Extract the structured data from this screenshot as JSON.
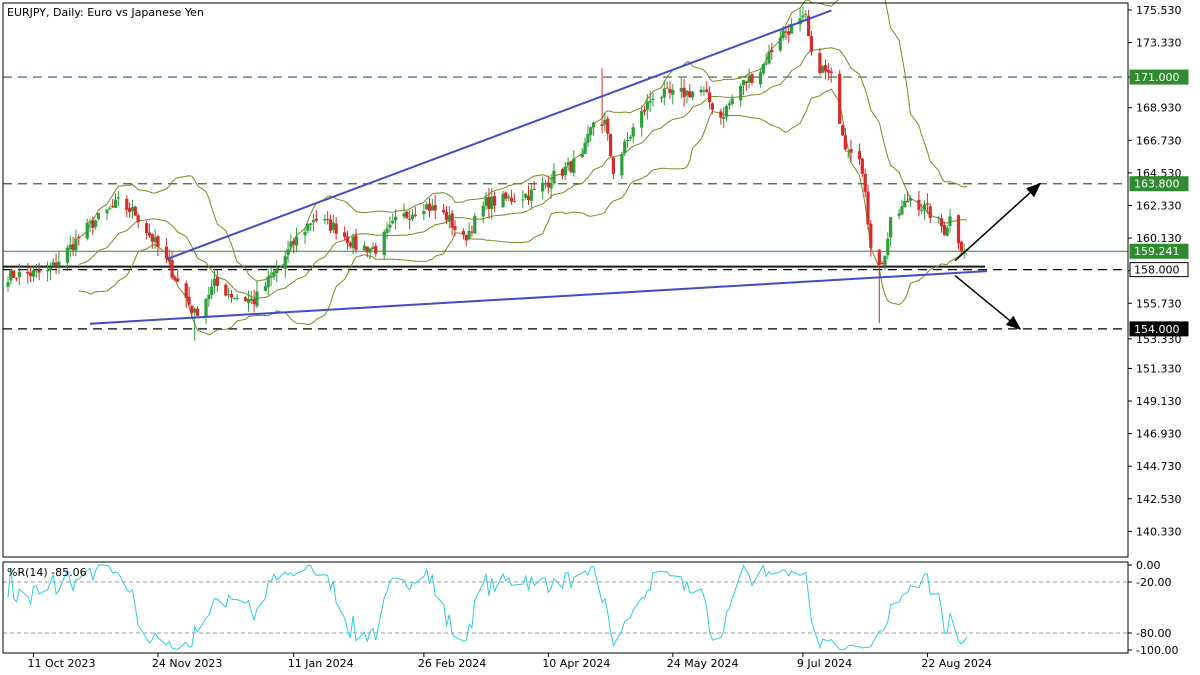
{
  "chart_data": [
    {
      "type": "candlestick",
      "title": "EURJPY, Daily:  Euro vs Japanese Yen",
      "colors": {
        "bull": "#2e9e3a",
        "bear": "#d82a2a",
        "bands": "#7a8a20",
        "trendline": "#3d4fc4",
        "grid": "#2e6b2e"
      },
      "ylim": [
        138.6,
        176.0
      ],
      "y_ticks": [
        "175.530",
        "173.330",
        "171.000",
        "168.930",
        "166.730",
        "164.530",
        "162.330",
        "160.130",
        "157.930",
        "155.730",
        "153.330",
        "151.330",
        "149.130",
        "146.930",
        "144.730",
        "142.530",
        "140.330"
      ],
      "x_tick_labels": [
        "11 Oct 2023",
        "24 Nov 2023",
        "11 Jan 2024",
        "26 Feb 2024",
        "10 Apr 2024",
        "24 May 2024",
        "9 Jul 2024",
        "22 Aug 2024"
      ],
      "price_levels": [
        {
          "value": 171.0,
          "label": "171.000",
          "style": "dashed",
          "color": "#2e6b2e",
          "tag_bg": "#2e8b2e",
          "tag_fg": "#ffffff"
        },
        {
          "value": 163.8,
          "label": "163.800",
          "style": "dashed",
          "color": "#2e6b2e",
          "tag_bg": "#2e8b2e",
          "tag_fg": "#ffffff"
        },
        {
          "value": 159.241,
          "label": "159.241",
          "style": "solid",
          "color": "#2e8b2e",
          "tag_bg": "#2e8b2e",
          "tag_fg": "#ffffff"
        },
        {
          "value": 158.0,
          "label": "158.000",
          "style": "dashed",
          "color": "#000000",
          "tag_bg": "#ffffff",
          "tag_fg": "#000000"
        },
        {
          "value": 154.0,
          "label": "154.000",
          "style": "dashed",
          "color": "#000000",
          "tag_bg": "#000000",
          "tag_fg": "#ffffff"
        }
      ],
      "trend_lines": [
        {
          "name": "upper-wedge-line",
          "from": [
            "2023-11-27",
            158.7
          ],
          "to": [
            "2024-07-12",
            175.5
          ]
        },
        {
          "name": "lower-wedge-line",
          "from": [
            "2023-10-31",
            154.35
          ],
          "to": [
            "2024-09-05",
            157.9
          ]
        }
      ],
      "ohlc_anchors": [
        [
          "2023-10-02",
          157.6
        ],
        [
          "2023-10-16",
          157.8
        ],
        [
          "2023-10-31",
          161.0
        ],
        [
          "2023-11-10",
          162.5
        ],
        [
          "2023-11-16",
          161.8
        ],
        [
          "2023-11-24",
          159.5
        ],
        [
          "2023-11-28",
          158.2
        ],
        [
          "2023-12-07",
          155.0
        ],
        [
          "2023-12-14",
          157.0
        ],
        [
          "2023-12-21",
          156.2
        ],
        [
          "2023-12-28",
          155.9
        ],
        [
          "2024-01-04",
          157.7
        ],
        [
          "2024-01-11",
          159.8
        ],
        [
          "2024-01-18",
          161.5
        ],
        [
          "2024-01-26",
          160.8
        ],
        [
          "2024-02-02",
          159.6
        ],
        [
          "2024-02-09",
          159.4
        ],
        [
          "2024-02-16",
          161.2
        ],
        [
          "2024-02-26",
          162.4
        ],
        [
          "2024-03-05",
          161.6
        ],
        [
          "2024-03-11",
          160.0
        ],
        [
          "2024-03-19",
          162.5
        ],
        [
          "2024-03-28",
          162.8
        ],
        [
          "2024-04-05",
          163.2
        ],
        [
          "2024-04-12",
          164.3
        ],
        [
          "2024-04-22",
          165.5
        ],
        [
          "2024-04-26",
          168.0
        ],
        [
          "2024-04-30",
          167.9
        ],
        [
          "2024-05-03",
          164.7
        ],
        [
          "2024-05-10",
          167.5
        ],
        [
          "2024-05-17",
          169.8
        ],
        [
          "2024-05-24",
          169.8
        ],
        [
          "2024-06-03",
          170.1
        ],
        [
          "2024-06-10",
          168.3
        ],
        [
          "2024-06-17",
          170.4
        ],
        [
          "2024-06-24",
          171.5
        ],
        [
          "2024-07-01",
          173.9
        ],
        [
          "2024-07-10",
          174.9
        ],
        [
          "2024-07-12",
          172.3
        ],
        [
          "2024-07-19",
          170.9
        ],
        [
          "2024-07-24",
          166.5
        ],
        [
          "2024-07-29",
          165.9
        ],
        [
          "2024-08-02",
          159.8
        ],
        [
          "2024-08-06",
          158.2
        ],
        [
          "2024-08-09",
          161.1
        ],
        [
          "2024-08-16",
          162.9
        ],
        [
          "2024-08-23",
          161.8
        ],
        [
          "2024-08-28",
          160.7
        ],
        [
          "2024-08-30",
          161.5
        ],
        [
          "2024-09-03",
          159.6
        ],
        [
          "2024-09-05",
          159.24
        ]
      ],
      "indicator": {
        "name": "%R(14)",
        "label": "%R(14) -85.06",
        "last_value": -85.06,
        "color": "#2ccce0",
        "ylim": [
          -100,
          0
        ],
        "y_ticks": [
          "0.00",
          "-20.00",
          "-80.00",
          "-100.00"
        ],
        "levels": [
          -20,
          -80
        ]
      }
    }
  ]
}
